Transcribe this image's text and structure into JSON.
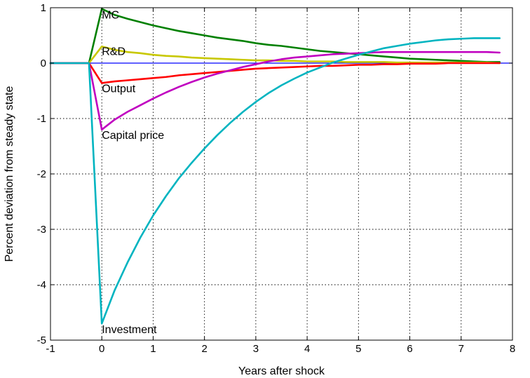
{
  "chart_data": {
    "type": "line",
    "xlabel": "Years after shock",
    "ylabel": "Percent deviation from steady state",
    "xlim": [
      -1,
      8
    ],
    "ylim": [
      -5,
      1
    ],
    "xticks": [
      -1,
      0,
      1,
      2,
      3,
      4,
      5,
      6,
      7,
      8
    ],
    "yticks": [
      -5,
      -4,
      -3,
      -2,
      -1,
      0,
      1
    ],
    "grid": true,
    "zero_line_color": "#0000ff",
    "series": [
      {
        "name": "MC",
        "color": "#008000",
        "x": [
          -1,
          -0.25,
          0,
          0.25,
          0.5,
          0.75,
          1,
          1.25,
          1.5,
          1.75,
          2,
          2.25,
          2.5,
          2.75,
          3,
          3.25,
          3.5,
          3.75,
          4,
          4.25,
          4.5,
          4.75,
          5,
          5.25,
          5.5,
          5.75,
          6,
          6.25,
          6.5,
          6.75,
          7,
          7.25,
          7.5,
          7.75
        ],
        "y": [
          0,
          0,
          0.98,
          0.87,
          0.8,
          0.74,
          0.68,
          0.63,
          0.58,
          0.54,
          0.5,
          0.46,
          0.43,
          0.4,
          0.36,
          0.33,
          0.31,
          0.28,
          0.25,
          0.22,
          0.2,
          0.18,
          0.16,
          0.14,
          0.12,
          0.1,
          0.08,
          0.07,
          0.06,
          0.05,
          0.04,
          0.03,
          0.02,
          0.02
        ]
      },
      {
        "name": "R&D",
        "color": "#c8c800",
        "x": [
          -1,
          -0.25,
          0,
          0.25,
          0.5,
          0.75,
          1,
          1.25,
          1.5,
          1.75,
          2,
          2.25,
          2.5,
          2.75,
          3,
          3.25,
          3.5,
          3.75,
          4,
          4.25,
          4.5,
          4.75,
          5,
          5.25,
          5.5,
          5.75,
          6,
          6.25,
          6.5,
          6.75,
          7,
          7.25,
          7.5,
          7.75
        ],
        "y": [
          0,
          0,
          0.3,
          0.24,
          0.2,
          0.18,
          0.15,
          0.13,
          0.12,
          0.1,
          0.09,
          0.08,
          0.07,
          0.06,
          0.05,
          0.05,
          0.04,
          0.04,
          0.03,
          0.03,
          0.03,
          0.02,
          0.02,
          0.02,
          0.02,
          0.01,
          0.01,
          0.01,
          0.01,
          0.01,
          0.01,
          0.01,
          0.01,
          0
        ]
      },
      {
        "name": "Output",
        "color": "#ff0000",
        "x": [
          -1,
          -0.25,
          0,
          0.25,
          0.5,
          0.75,
          1,
          1.25,
          1.5,
          1.75,
          2,
          2.25,
          2.5,
          2.75,
          3,
          3.25,
          3.5,
          3.75,
          4,
          4.25,
          4.5,
          4.75,
          5,
          5.25,
          5.5,
          5.75,
          6,
          6.25,
          6.5,
          6.75,
          7,
          7.25,
          7.5,
          7.75
        ],
        "y": [
          0,
          0,
          -0.36,
          -0.33,
          -0.31,
          -0.29,
          -0.27,
          -0.25,
          -0.22,
          -0.2,
          -0.18,
          -0.16,
          -0.14,
          -0.12,
          -0.1,
          -0.09,
          -0.08,
          -0.07,
          -0.06,
          -0.05,
          -0.05,
          -0.04,
          -0.03,
          -0.03,
          -0.02,
          -0.02,
          -0.01,
          -0.01,
          -0.01,
          0,
          0,
          0,
          0,
          0
        ]
      },
      {
        "name": "Capital price",
        "color": "#c000c0",
        "x": [
          -1,
          -0.25,
          0,
          0.25,
          0.5,
          0.75,
          1,
          1.25,
          1.5,
          1.75,
          2,
          2.25,
          2.5,
          2.75,
          3,
          3.25,
          3.5,
          3.75,
          4,
          4.25,
          4.5,
          4.75,
          5,
          5.25,
          5.5,
          5.75,
          6,
          6.25,
          6.5,
          6.75,
          7,
          7.25,
          7.5,
          7.75
        ],
        "y": [
          0,
          0,
          -1.2,
          -1.02,
          -0.88,
          -0.76,
          -0.64,
          -0.53,
          -0.43,
          -0.34,
          -0.26,
          -0.19,
          -0.13,
          -0.07,
          -0.02,
          0.03,
          0.07,
          0.1,
          0.12,
          0.14,
          0.16,
          0.17,
          0.18,
          0.19,
          0.2,
          0.2,
          0.2,
          0.2,
          0.2,
          0.2,
          0.2,
          0.2,
          0.2,
          0.19
        ]
      },
      {
        "name": "Investment",
        "color": "#00b4c0",
        "x": [
          -1,
          -0.25,
          0,
          0.25,
          0.5,
          0.75,
          1,
          1.25,
          1.5,
          1.75,
          2,
          2.25,
          2.5,
          2.75,
          3,
          3.25,
          3.5,
          3.75,
          4,
          4.25,
          4.5,
          4.75,
          5,
          5.25,
          5.5,
          5.75,
          6,
          6.25,
          6.5,
          6.75,
          7,
          7.25,
          7.5,
          7.75
        ],
        "y": [
          0,
          0,
          -4.7,
          -4.1,
          -3.6,
          -3.15,
          -2.75,
          -2.4,
          -2.08,
          -1.8,
          -1.54,
          -1.3,
          -1.08,
          -0.88,
          -0.7,
          -0.54,
          -0.4,
          -0.28,
          -0.17,
          -0.08,
          0.01,
          0.08,
          0.15,
          0.21,
          0.27,
          0.31,
          0.35,
          0.38,
          0.41,
          0.43,
          0.44,
          0.45,
          0.45,
          0.45
        ]
      }
    ],
    "annotations": [
      {
        "text": "MC",
        "x": 0.0,
        "y": 0.88
      },
      {
        "text": "R&D",
        "x": 0.0,
        "y": 0.22
      },
      {
        "text": "Output",
        "x": 0.0,
        "y": -0.45
      },
      {
        "text": "Capital price",
        "x": 0.0,
        "y": -1.29
      },
      {
        "text": "Investment",
        "x": 0.0,
        "y": -4.8
      }
    ]
  }
}
